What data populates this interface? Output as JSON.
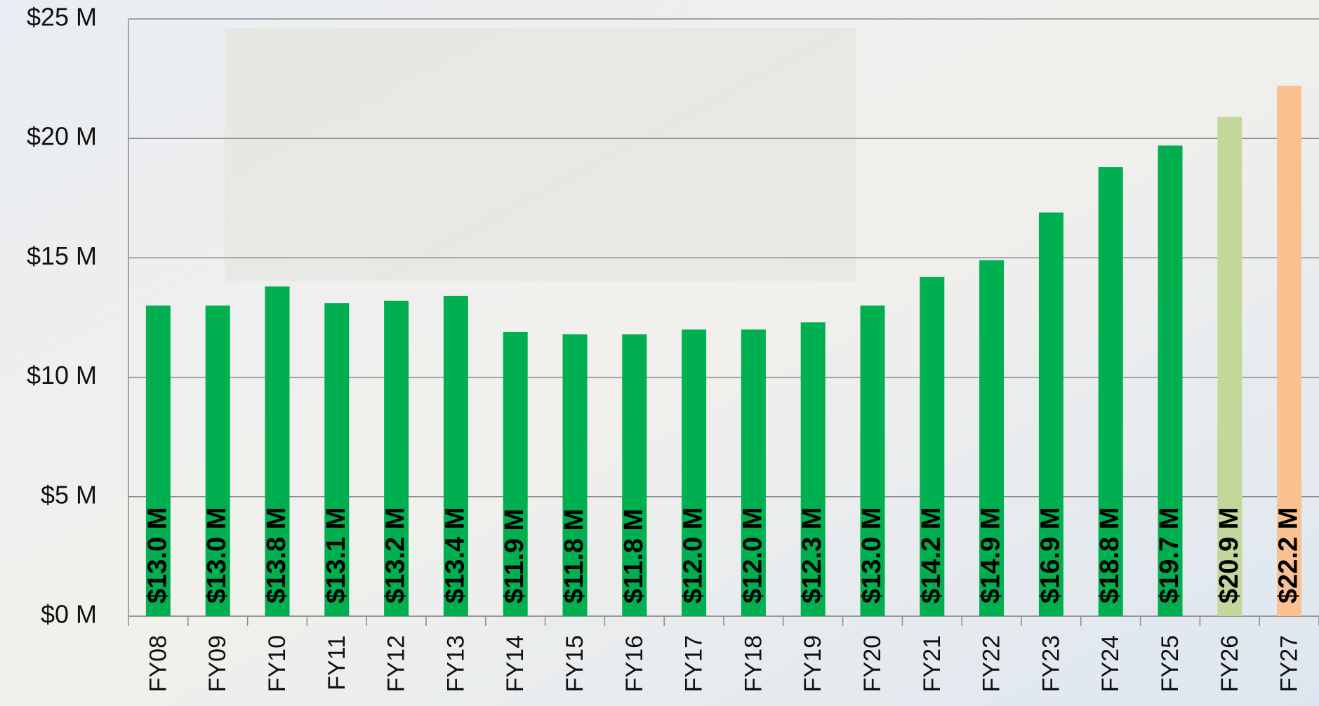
{
  "chart_data": {
    "type": "bar",
    "categories": [
      "FY08",
      "FY09",
      "FY10",
      "FY11",
      "FY12",
      "FY13",
      "FY14",
      "FY15",
      "FY16",
      "FY17",
      "FY18",
      "FY19",
      "FY20",
      "FY21",
      "FY22",
      "FY23",
      "FY24",
      "FY25",
      "FY26",
      "FY27"
    ],
    "values": [
      13.0,
      13.0,
      13.8,
      13.1,
      13.2,
      13.4,
      11.9,
      11.8,
      11.8,
      12.0,
      12.0,
      12.3,
      13.0,
      14.2,
      14.9,
      16.9,
      18.8,
      19.7,
      20.9,
      22.2
    ],
    "value_labels": [
      "$13.0 M",
      "$13.0 M",
      "$13.8 M",
      "$13.1 M",
      "$13.2 M",
      "$13.4 M",
      "$11.9 M",
      "$11.8 M",
      "$11.8 M",
      "$12.0 M",
      "$12.0 M",
      "$12.3 M",
      "$13.0 M",
      "$14.2 M",
      "$14.9 M",
      "$16.9 M",
      "$18.8 M",
      "$19.7 M",
      "$20.9 M",
      "$22.2 M"
    ],
    "colors": [
      "#00b050",
      "#00b050",
      "#00b050",
      "#00b050",
      "#00b050",
      "#00b050",
      "#00b050",
      "#00b050",
      "#00b050",
      "#00b050",
      "#00b050",
      "#00b050",
      "#00b050",
      "#00b050",
      "#00b050",
      "#00b050",
      "#00b050",
      "#00b050",
      "#c4d79b",
      "#fac090"
    ],
    "ylim": [
      0,
      25
    ],
    "yticks": [
      {
        "value": 0,
        "label": "$0 M"
      },
      {
        "value": 5,
        "label": "$5 M"
      },
      {
        "value": 10,
        "label": "$10 M"
      },
      {
        "value": 15,
        "label": "$15 M"
      },
      {
        "value": 20,
        "label": "$20 M"
      },
      {
        "value": 25,
        "label": "$25 M"
      }
    ],
    "grid": true
  }
}
